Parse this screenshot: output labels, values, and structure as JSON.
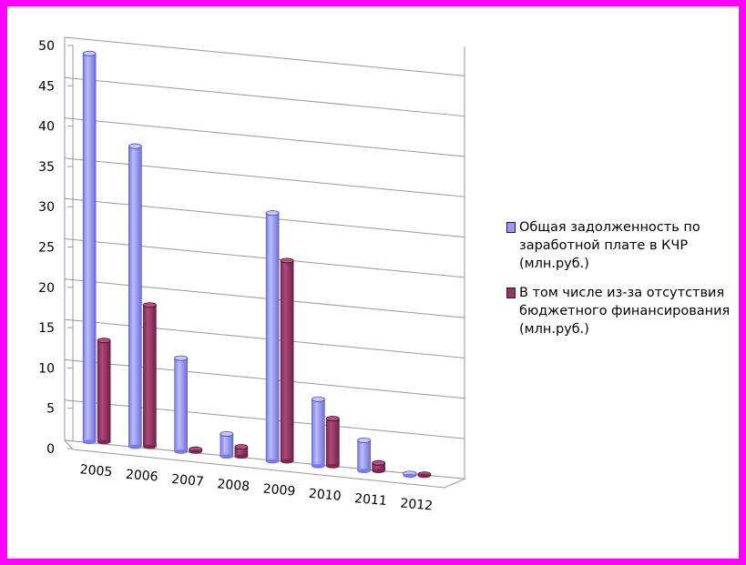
{
  "chart_data": {
    "type": "bar",
    "title": "",
    "xlabel": "",
    "ylabel": "",
    "ylim": [
      0,
      50
    ],
    "yticks": [
      0,
      5,
      10,
      15,
      20,
      25,
      30,
      35,
      40,
      45,
      50
    ],
    "grid": true,
    "legend_position": "right",
    "categories": [
      "2005",
      "2006",
      "2007",
      "2008",
      "2009",
      "2010",
      "2011",
      "2012"
    ],
    "series": [
      {
        "name": "Общая задолженность по заработной плате в КЧР (млн.руб.)",
        "color": "#9999ff",
        "values": [
          48.2,
          37.3,
          11.6,
          2.8,
          30.8,
          8.3,
          3.8,
          0.3
        ]
      },
      {
        "name": "В том числе из-за отсутствия бюджетного финансирования (млн.руб.)",
        "color": "#993366",
        "values": [
          12.6,
          17.6,
          0.3,
          1.2,
          24.9,
          5.9,
          1.0,
          0.2
        ]
      }
    ]
  },
  "legend": {
    "entries": [
      {
        "lines": [
          "Общая задолженность по",
          "заработной плате в КЧР",
          "(млн.руб.)"
        ]
      },
      {
        "lines": [
          "В том числе из-за отсутствия",
          "бюджетного финансирования",
          "(млн.руб.)"
        ]
      }
    ]
  }
}
